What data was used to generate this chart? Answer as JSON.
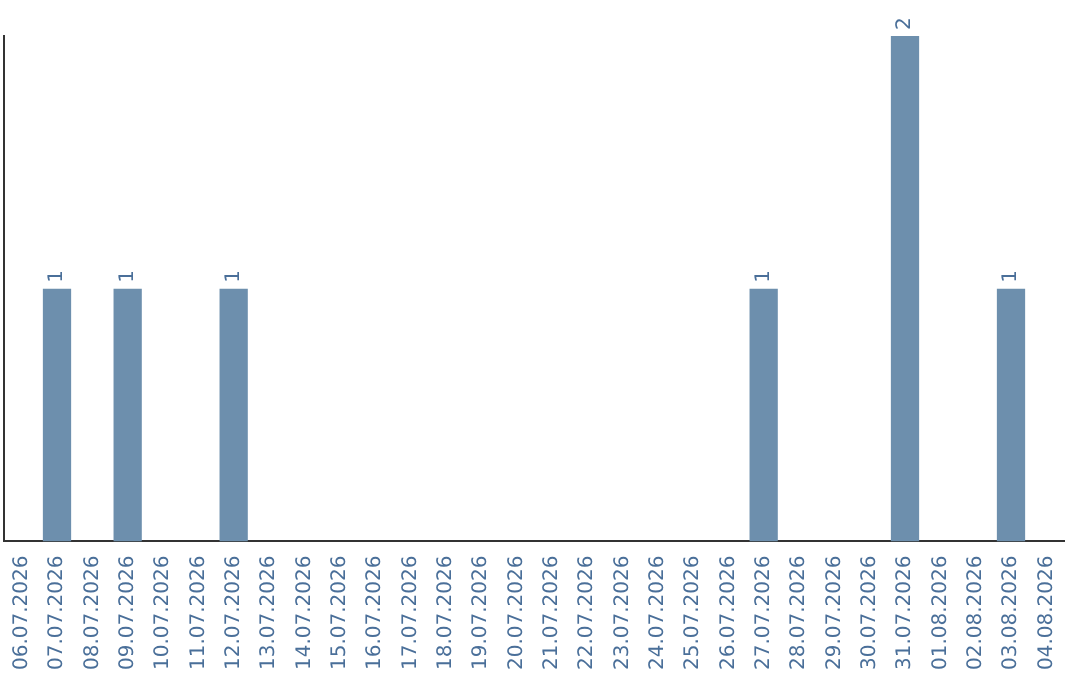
{
  "chart_data": {
    "type": "bar",
    "categories": [
      "06.07.2026",
      "07.07.2026",
      "08.07.2026",
      "09.07.2026",
      "10.07.2026",
      "11.07.2026",
      "12.07.2026",
      "13.07.2026",
      "14.07.2026",
      "15.07.2026",
      "16.07.2026",
      "17.07.2026",
      "18.07.2026",
      "19.07.2026",
      "20.07.2026",
      "21.07.2026",
      "22.07.2026",
      "23.07.2026",
      "24.07.2026",
      "25.07.2026",
      "26.07.2026",
      "27.07.2026",
      "28.07.2026",
      "29.07.2026",
      "30.07.2026",
      "31.07.2026",
      "01.08.2026",
      "02.08.2026",
      "03.08.2026",
      "04.08.2026"
    ],
    "values": [
      0,
      1,
      0,
      1,
      0,
      0,
      1,
      0,
      0,
      0,
      0,
      0,
      0,
      0,
      0,
      0,
      0,
      0,
      0,
      0,
      0,
      1,
      0,
      0,
      0,
      2,
      0,
      0,
      1,
      0
    ],
    "value_labels": [
      null,
      "1",
      null,
      "1",
      null,
      null,
      "1",
      null,
      null,
      null,
      null,
      null,
      null,
      null,
      null,
      null,
      null,
      null,
      null,
      null,
      null,
      "1",
      null,
      null,
      null,
      "2",
      null,
      null,
      "1",
      null
    ],
    "color": "#6d8fad",
    "grid": false,
    "legend": false,
    "tick_labels": "x"
  }
}
